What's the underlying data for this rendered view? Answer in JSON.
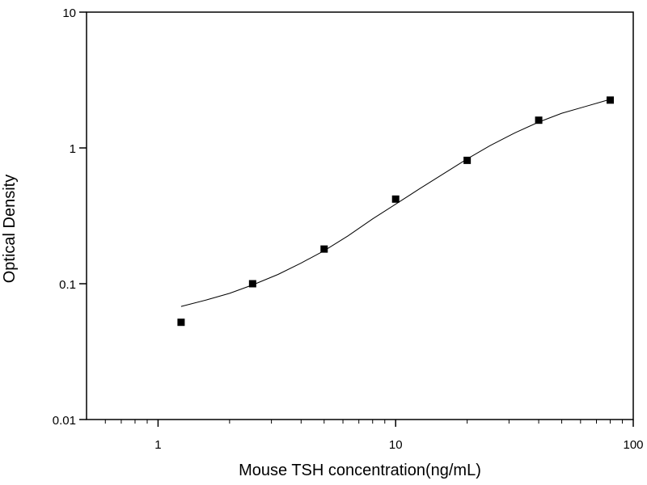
{
  "chart_data": {
    "type": "scatter",
    "xlabel": "Mouse TSH concentration(ng/mL)",
    "ylabel": "Optical Density",
    "x_scale": "log",
    "y_scale": "log",
    "xlim": [
      0.5,
      100
    ],
    "ylim": [
      0.01,
      10
    ],
    "x_ticks": [
      {
        "value": 1,
        "label": "1"
      },
      {
        "value": 10,
        "label": "10"
      },
      {
        "value": 100,
        "label": "100"
      }
    ],
    "y_ticks": [
      {
        "value": 0.01,
        "label": "0.01"
      },
      {
        "value": 0.1,
        "label": "0.1"
      },
      {
        "value": 1,
        "label": "1"
      },
      {
        "value": 10,
        "label": "10"
      }
    ],
    "grid": false,
    "legend": false,
    "colors": {
      "points": "#000000",
      "curve": "#000000",
      "axes": "#000000"
    },
    "series": [
      {
        "kind": "points",
        "marker": "square",
        "points": [
          {
            "x": 1.25,
            "y": 0.052
          },
          {
            "x": 2.5,
            "y": 0.1
          },
          {
            "x": 5,
            "y": 0.18
          },
          {
            "x": 10,
            "y": 0.42
          },
          {
            "x": 20,
            "y": 0.81
          },
          {
            "x": 40,
            "y": 1.6
          },
          {
            "x": 80,
            "y": 2.25
          }
        ]
      },
      {
        "kind": "fitted-curve",
        "points": [
          {
            "x": 1.25,
            "y": 0.068
          },
          {
            "x": 1.6,
            "y": 0.076
          },
          {
            "x": 2,
            "y": 0.085
          },
          {
            "x": 2.5,
            "y": 0.098
          },
          {
            "x": 3.2,
            "y": 0.117
          },
          {
            "x": 4,
            "y": 0.142
          },
          {
            "x": 5,
            "y": 0.175
          },
          {
            "x": 6.3,
            "y": 0.225
          },
          {
            "x": 8,
            "y": 0.3
          },
          {
            "x": 10,
            "y": 0.385
          },
          {
            "x": 12.6,
            "y": 0.5
          },
          {
            "x": 16,
            "y": 0.65
          },
          {
            "x": 20,
            "y": 0.83
          },
          {
            "x": 25,
            "y": 1.04
          },
          {
            "x": 32,
            "y": 1.3
          },
          {
            "x": 40,
            "y": 1.55
          },
          {
            "x": 50,
            "y": 1.8
          },
          {
            "x": 63,
            "y": 2.02
          },
          {
            "x": 80,
            "y": 2.28
          }
        ]
      }
    ]
  }
}
